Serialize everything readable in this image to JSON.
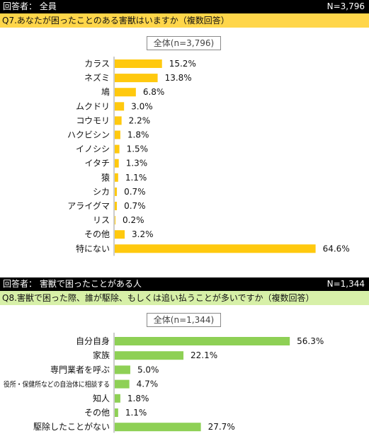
{
  "colors": {
    "q7_header_bg": "#ffd64a",
    "q7_bar": "#ffc90e",
    "q8_header_bg": "#d7f0a8",
    "q8_bar": "#8ed055"
  },
  "q7": {
    "respondents": "回答者： 全員",
    "n": "N=3,796",
    "question": "Q7.あなたが困ったことのある害獣はいますか（複数回答）",
    "legend": "全体(n=3,796)"
  },
  "q8": {
    "respondents": "回答者： 害獣で困ったことがある人",
    "n": "N=1,344",
    "question": "Q8.害獣で困った際、誰が駆除、もしくは追い払うことが多いですか（複数回答）",
    "legend": "全体(n=1,344)"
  },
  "chart_data": [
    {
      "type": "bar",
      "orientation": "horizontal",
      "series": [
        {
          "name": "全体(n=3,796)",
          "values": [
            15.2,
            13.8,
            6.8,
            3.0,
            2.2,
            1.8,
            1.5,
            1.3,
            1.1,
            0.7,
            0.7,
            0.2,
            3.2,
            64.6
          ]
        }
      ],
      "categories": [
        "カラス",
        "ネズミ",
        "鳩",
        "ムクドリ",
        "コウモリ",
        "ハクビシン",
        "イノシシ",
        "イタチ",
        "猿",
        "シカ",
        "アライグマ",
        "リス",
        "その他",
        "特にない"
      ],
      "value_labels": [
        "15.2%",
        "13.8%",
        "6.8%",
        "3.0%",
        "2.2%",
        "1.8%",
        "1.5%",
        "1.3%",
        "1.1%",
        "0.7%",
        "0.7%",
        "0.2%",
        "3.2%",
        "64.6%"
      ]
    },
    {
      "type": "bar",
      "orientation": "horizontal",
      "series": [
        {
          "name": "全体(n=1,344)",
          "values": [
            56.3,
            22.1,
            5.0,
            4.7,
            1.8,
            1.1,
            27.7
          ]
        }
      ],
      "categories": [
        "自分自身",
        "家族",
        "専門業者を呼ぶ",
        "役所・保健所などの自治体に相談する",
        "知人",
        "その他",
        "駆除したことがない"
      ],
      "value_labels": [
        "56.3%",
        "22.1%",
        "5.0%",
        "4.7%",
        "1.8%",
        "1.1%",
        "27.7%"
      ]
    }
  ]
}
